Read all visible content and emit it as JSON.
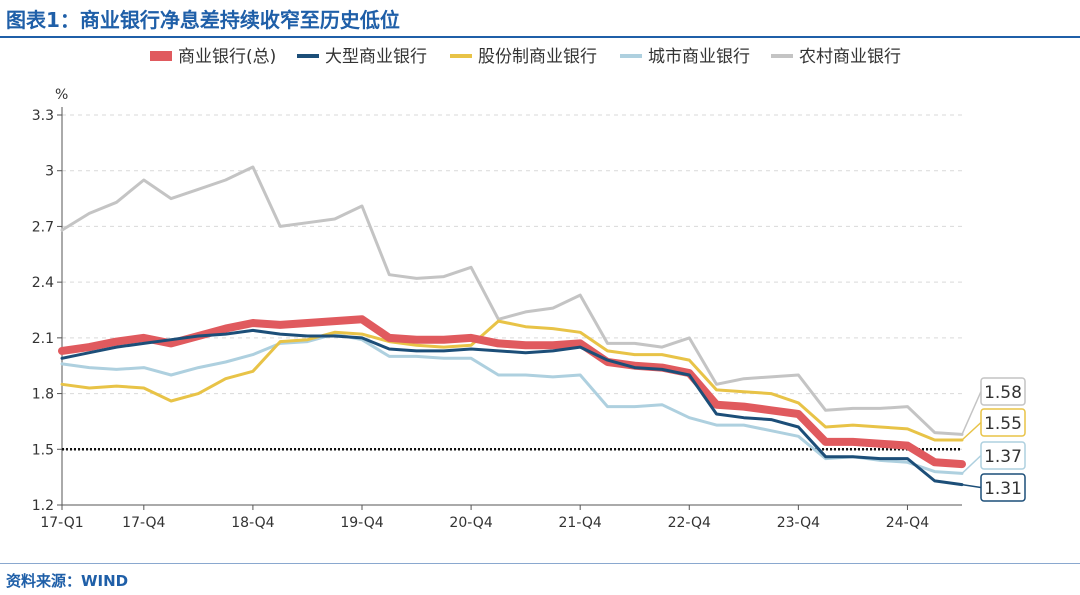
{
  "title": "图表1：商业银行净息差持续收窄至历史低位",
  "source": "资料来源：WIND",
  "chart_data": {
    "type": "line",
    "title": "图表1：商业银行净息差持续收窄至历史低位",
    "ylabel": "%",
    "xlabel": "",
    "ylim": [
      1.2,
      3.3
    ],
    "yticks": [
      "1.2",
      "1.5",
      "1.8",
      "2.1",
      "2.4",
      "2.7",
      "3",
      "3.3"
    ],
    "ytick_values": [
      1.2,
      1.5,
      1.8,
      2.1,
      2.4,
      2.7,
      3.0,
      3.3
    ],
    "x": [
      "17-Q1",
      "17-Q2",
      "17-Q3",
      "17-Q4",
      "18-Q1",
      "18-Q2",
      "18-Q3",
      "18-Q4",
      "19-Q1",
      "19-Q2",
      "19-Q3",
      "19-Q4",
      "20-Q1",
      "20-Q2",
      "20-Q3",
      "20-Q4",
      "21-Q1",
      "21-Q2",
      "21-Q3",
      "21-Q4",
      "22-Q1",
      "22-Q2",
      "22-Q3",
      "22-Q4",
      "23-Q1",
      "23-Q2",
      "23-Q3",
      "23-Q4",
      "24-Q1",
      "24-Q2",
      "24-Q3",
      "24-Q4",
      "25-Q1",
      "25-Q2"
    ],
    "xtick_labels": [
      "17-Q1",
      "17-Q4",
      "18-Q4",
      "19-Q4",
      "20-Q4",
      "21-Q4",
      "22-Q4",
      "23-Q4",
      "24-Q4"
    ],
    "xtick_index": [
      0,
      3,
      7,
      11,
      15,
      19,
      23,
      27,
      31
    ],
    "reference_line": 1.5,
    "legend_position": "top",
    "grid": "horizontal-dashed",
    "series": [
      {
        "name": "商业银行(总)",
        "color": "#e05a5e",
        "width": 8,
        "values": [
          2.03,
          2.05,
          2.08,
          2.1,
          2.07,
          2.11,
          2.15,
          2.18,
          2.17,
          2.18,
          2.19,
          2.2,
          2.1,
          2.09,
          2.09,
          2.1,
          2.07,
          2.06,
          2.06,
          2.07,
          1.97,
          1.95,
          1.94,
          1.91,
          1.74,
          1.73,
          1.71,
          1.69,
          1.54,
          1.54,
          1.53,
          1.52,
          1.43,
          1.42
        ]
      },
      {
        "name": "大型商业银行",
        "color": "#1c4e78",
        "width": 3,
        "values": [
          1.99,
          2.02,
          2.05,
          2.07,
          2.09,
          2.11,
          2.12,
          2.14,
          2.12,
          2.11,
          2.11,
          2.1,
          2.04,
          2.03,
          2.03,
          2.04,
          2.03,
          2.02,
          2.03,
          2.05,
          1.98,
          1.94,
          1.93,
          1.9,
          1.69,
          1.67,
          1.66,
          1.62,
          1.46,
          1.46,
          1.45,
          1.45,
          1.33,
          1.31
        ]
      },
      {
        "name": "股份制商业银行",
        "color": "#e8c347",
        "width": 3,
        "values": [
          1.85,
          1.83,
          1.84,
          1.83,
          1.76,
          1.8,
          1.88,
          1.92,
          2.08,
          2.09,
          2.13,
          2.12,
          2.08,
          2.06,
          2.05,
          2.06,
          2.19,
          2.16,
          2.15,
          2.13,
          2.03,
          2.01,
          2.01,
          1.98,
          1.82,
          1.81,
          1.8,
          1.75,
          1.62,
          1.63,
          1.62,
          1.61,
          1.55,
          1.55
        ]
      },
      {
        "name": "城市商业银行",
        "color": "#aed0df",
        "width": 3,
        "values": [
          1.96,
          1.94,
          1.93,
          1.94,
          1.9,
          1.94,
          1.97,
          2.01,
          2.07,
          2.08,
          2.12,
          2.09,
          2.0,
          2.0,
          1.99,
          1.99,
          1.9,
          1.9,
          1.89,
          1.9,
          1.73,
          1.73,
          1.74,
          1.67,
          1.63,
          1.63,
          1.6,
          1.57,
          1.45,
          1.46,
          1.44,
          1.43,
          1.38,
          1.37
        ]
      },
      {
        "name": "农村商业银行",
        "color": "#c4c4c4",
        "width": 3,
        "values": [
          2.68,
          2.77,
          2.83,
          2.95,
          2.85,
          2.9,
          2.95,
          3.02,
          2.7,
          2.72,
          2.74,
          2.81,
          2.44,
          2.42,
          2.43,
          2.48,
          2.2,
          2.24,
          2.26,
          2.33,
          2.07,
          2.07,
          2.05,
          2.1,
          1.85,
          1.88,
          1.89,
          1.9,
          1.71,
          1.72,
          1.72,
          1.73,
          1.59,
          1.58
        ]
      }
    ],
    "callouts": [
      {
        "text": "1.58",
        "border": "#c4c4c4"
      },
      {
        "text": "1.55",
        "border": "#e8c347"
      },
      {
        "text": "1.37",
        "border": "#aed0df"
      },
      {
        "text": "1.31",
        "border": "#1c4e78"
      }
    ]
  }
}
